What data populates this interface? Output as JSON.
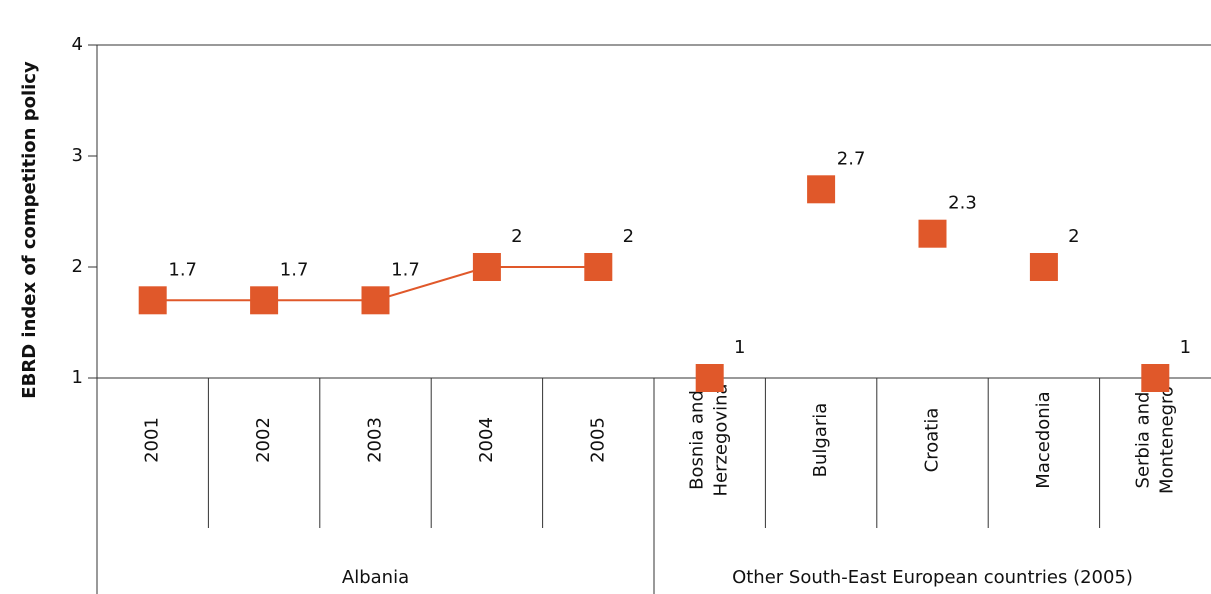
{
  "chart_data": {
    "type": "line",
    "y_label": "EBRD index of competition policy",
    "categories": [
      "2001",
      "2002",
      "2003",
      "2004",
      "2005",
      "Bosnia and Herzegovina",
      "Bulgaria",
      "Croatia",
      "Macedonia",
      "Serbia and Montenegro"
    ],
    "series": [
      {
        "name": "Albania",
        "color": "#e0582a",
        "connected": true,
        "values": [
          1.7,
          1.7,
          1.7,
          2,
          2,
          null,
          null,
          null,
          null,
          null
        ]
      },
      {
        "name": "Other South-East European countries (2005)",
        "color": "#e0582a",
        "connected": false,
        "values": [
          null,
          null,
          null,
          null,
          null,
          1,
          2.7,
          2.3,
          2,
          1
        ]
      }
    ],
    "ylim": [
      1,
      4
    ],
    "yticks": [
      1,
      2,
      3,
      4
    ],
    "grid": false
  }
}
